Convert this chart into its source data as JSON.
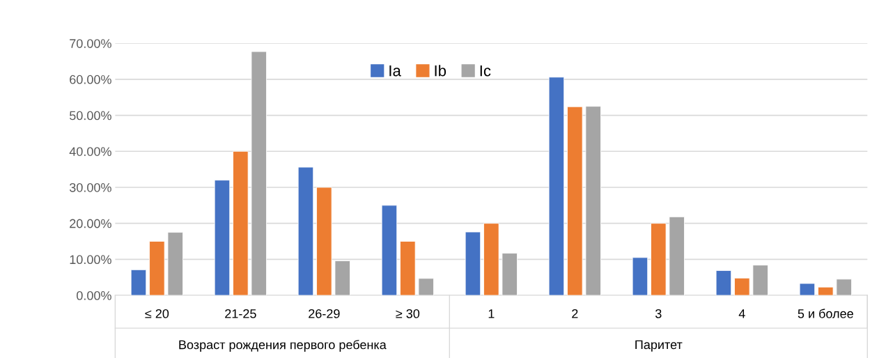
{
  "chart_data": {
    "type": "bar",
    "categories": [
      "≤ 20",
      "21-25",
      "26-29",
      "≥ 30",
      "1",
      "2",
      "3",
      "4",
      "5 и более"
    ],
    "series": [
      {
        "name": "Ia",
        "color": "#4472c4",
        "values": [
          7.1,
          32,
          35.6,
          25,
          17.6,
          60.6,
          10.5,
          6.9,
          3.3
        ]
      },
      {
        "name": "Ib",
        "color": "#ed7d31",
        "values": [
          15,
          40,
          30,
          15,
          20,
          52.4,
          20,
          4.8,
          2.3
        ]
      },
      {
        "name": "Ic",
        "color": "#a5a5a5",
        "values": [
          17.5,
          67.7,
          9.6,
          4.7,
          11.7,
          52.5,
          21.8,
          8.4,
          4.5
        ]
      }
    ],
    "ylim": [
      0,
      70
    ],
    "yticks": [
      {
        "value": 0,
        "label": "0.00%"
      },
      {
        "value": 10,
        "label": "10.00%"
      },
      {
        "value": 20,
        "label": "20.00%"
      },
      {
        "value": 30,
        "label": "30.00%"
      },
      {
        "value": 40,
        "label": "40.00%"
      },
      {
        "value": 50,
        "label": "50.00%"
      },
      {
        "value": 60,
        "label": "60.00%"
      },
      {
        "value": 70,
        "label": "70.00%"
      }
    ],
    "annotations": [
      "Возраст рождения первого ребенка",
      "Паритет"
    ],
    "grid": "y",
    "legend": "top"
  }
}
